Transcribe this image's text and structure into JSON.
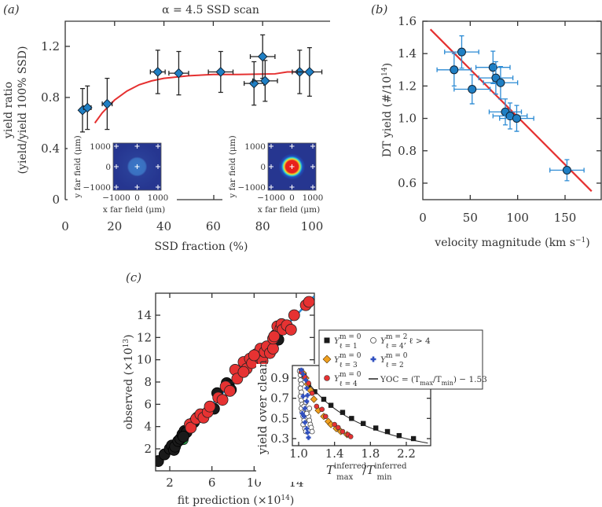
{
  "chart_data": [
    {
      "panel": "(a)",
      "type": "scatter",
      "title": "α = 4.5 SSD scan",
      "xlabel": "SSD fraction (%)",
      "ylabel": [
        "yield ratio",
        "(yield/yield 100% SSD)"
      ],
      "xlim": [
        0,
        107
      ],
      "ylim": [
        0,
        1.4
      ],
      "xticks": [
        0,
        20,
        40,
        60,
        80,
        100
      ],
      "yticks": [
        0,
        0.4,
        0.8,
        1.2
      ],
      "colors": {
        "marker": "#1f7fc4",
        "fit": "#e53030",
        "errorbar": "#222222"
      },
      "points": [
        {
          "x": 7,
          "y": 0.7,
          "xerr": 1,
          "yerr": 0.17
        },
        {
          "x": 9,
          "y": 0.72,
          "xerr": 1.5,
          "yerr": 0.17
        },
        {
          "x": 17,
          "y": 0.75,
          "xerr": 2,
          "yerr": 0.2
        },
        {
          "x": 37.5,
          "y": 1.0,
          "xerr": 3,
          "yerr": 0.17
        },
        {
          "x": 46,
          "y": 0.99,
          "xerr": 4,
          "yerr": 0.17
        },
        {
          "x": 63,
          "y": 1.0,
          "xerr": 5,
          "yerr": 0.16
        },
        {
          "x": 76.5,
          "y": 0.91,
          "xerr": 4,
          "yerr": 0.17
        },
        {
          "x": 80,
          "y": 1.12,
          "xerr": 5,
          "yerr": 0.17
        },
        {
          "x": 81,
          "y": 0.93,
          "xerr": 5,
          "yerr": 0.16
        },
        {
          "x": 95,
          "y": 1.0,
          "xerr": 3,
          "yerr": 0.17
        },
        {
          "x": 99,
          "y": 1.0,
          "xerr": 5,
          "yerr": 0.19
        }
      ],
      "fit": [
        [
          12,
          0.6
        ],
        [
          15,
          0.68
        ],
        [
          20,
          0.78
        ],
        [
          25,
          0.85
        ],
        [
          30,
          0.9
        ],
        [
          35,
          0.93
        ],
        [
          40,
          0.95
        ],
        [
          50,
          0.97
        ],
        [
          60,
          0.98
        ],
        [
          70,
          0.98
        ],
        [
          85,
          0.985
        ],
        [
          90,
          1.0
        ],
        [
          101,
          1.0
        ]
      ],
      "insets": [
        {
          "ylabel": "y far field (μm)",
          "xlabel": "x far field (μm)",
          "ticks": [
            "−1000",
            "0",
            "1000"
          ],
          "style": "faint"
        },
        {
          "ylabel": "y far field (μm)",
          "xlabel": "x far field (μm)",
          "ticks": [
            "−1000",
            "0",
            "1000"
          ],
          "style": "hot"
        }
      ]
    },
    {
      "panel": "(b)",
      "type": "scatter",
      "xlabel": "velocity magnitude (km s",
      "xlabel_sup": "−1",
      "xlabel_end": ")",
      "ylabel": "DT yield (#/10",
      "ylabel_sup": "14",
      "ylabel_end": ")",
      "xlim": [
        0,
        190
      ],
      "ylim": [
        0.5,
        1.6
      ],
      "xticks": [
        0,
        50,
        100,
        150
      ],
      "yticks": [
        0.6,
        0.8,
        1.0,
        1.2,
        1.4,
        1.6
      ],
      "colors": {
        "marker": "#1f7fc4",
        "errorbar": "#2a8ad4",
        "fit": "#e53030"
      },
      "points": [
        {
          "x": 33,
          "y": 1.3,
          "xerr": 18,
          "yerr": 0.1
        },
        {
          "x": 41,
          "y": 1.41,
          "xerr": 18,
          "yerr": 0.1
        },
        {
          "x": 52,
          "y": 1.18,
          "xerr": 19,
          "yerr": 0.09
        },
        {
          "x": 74,
          "y": 1.315,
          "xerr": 18,
          "yerr": 0.1
        },
        {
          "x": 77,
          "y": 1.25,
          "xerr": 18,
          "yerr": 0.1
        },
        {
          "x": 82,
          "y": 1.22,
          "xerr": 18,
          "yerr": 0.1
        },
        {
          "x": 87,
          "y": 1.04,
          "xerr": 17,
          "yerr": 0.08
        },
        {
          "x": 92,
          "y": 1.015,
          "xerr": 18,
          "yerr": 0.08
        },
        {
          "x": 99,
          "y": 1.0,
          "xerr": 18,
          "yerr": 0.08
        },
        {
          "x": 152,
          "y": 0.68,
          "xerr": 18,
          "yerr": 0.065
        }
      ],
      "fit": [
        [
          8,
          1.55
        ],
        [
          178,
          0.55
        ]
      ]
    },
    {
      "panel": "(c)",
      "type": "scatter",
      "xlabel": "fit prediction (×10",
      "xlabel_sup": "14",
      "xlabel_end": ")",
      "ylabel": "observed (×10",
      "ylabel_sup": "13",
      "ylabel_end": ")",
      "xlim": [
        0.65,
        15.7
      ],
      "ylim": [
        0,
        16
      ],
      "xticks": [
        2,
        6,
        10,
        14
      ],
      "yticks": [
        2,
        4,
        6,
        8,
        10,
        12,
        14
      ],
      "colors": {
        "black": "#1a1a1a",
        "red": "#e63232",
        "green": "#2a9a4a",
        "line": "#2a8ad4"
      },
      "black_points": [
        [
          0.9,
          0.9
        ],
        [
          1.5,
          1.5
        ],
        [
          2.0,
          2.0
        ],
        [
          2.2,
          2.3
        ],
        [
          2.4,
          1.9
        ],
        [
          2.5,
          2.2
        ],
        [
          2.8,
          2.7
        ],
        [
          3.0,
          2.9
        ],
        [
          3.2,
          3.3
        ],
        [
          3.4,
          3.6
        ],
        [
          3.6,
          3.5
        ],
        [
          3.3,
          3.1
        ],
        [
          4.0,
          4.2
        ],
        [
          4.3,
          4.4
        ],
        [
          4.6,
          4.8
        ],
        [
          6.2,
          5.6
        ],
        [
          7.4,
          7.9
        ],
        [
          7.6,
          7.7
        ],
        [
          7.8,
          7.3
        ],
        [
          12.0,
          12.2
        ],
        [
          12.3,
          11.8
        ],
        [
          12.6,
          13.0
        ],
        [
          6.5,
          7.0
        ]
      ],
      "red_points": [
        [
          3.9,
          4.2
        ],
        [
          4.0,
          3.9
        ],
        [
          4.5,
          4.7
        ],
        [
          4.9,
          5.1
        ],
        [
          5.2,
          4.8
        ],
        [
          5.6,
          5.3
        ],
        [
          5.8,
          5.8
        ],
        [
          6.6,
          6.6
        ],
        [
          7.0,
          6.4
        ],
        [
          7.3,
          7.6
        ],
        [
          7.7,
          7.2
        ],
        [
          8.2,
          9.1
        ],
        [
          8.4,
          8.3
        ],
        [
          9.0,
          9.8
        ],
        [
          9.3,
          9.2
        ],
        [
          9.0,
          8.9
        ],
        [
          9.6,
          10.1
        ],
        [
          9.8,
          9.7
        ],
        [
          10.2,
          10.5
        ],
        [
          10.5,
          10.2
        ],
        [
          10.8,
          9.9
        ],
        [
          10.6,
          11.0
        ],
        [
          11.0,
          10.7
        ],
        [
          11.2,
          11.2
        ],
        [
          11.5,
          10.6
        ],
        [
          11.8,
          11.0
        ],
        [
          11.8,
          11.9
        ],
        [
          12.2,
          13.0
        ],
        [
          12.5,
          12.8
        ],
        [
          12.6,
          13.2
        ],
        [
          12.7,
          12.7
        ],
        [
          13.1,
          13.1
        ],
        [
          13.5,
          12.7
        ],
        [
          13.8,
          14.0
        ],
        [
          14.9,
          14.9
        ],
        [
          15.2,
          15.2
        ],
        [
          11.9,
          12.1
        ],
        [
          10.0,
          10.4
        ]
      ],
      "green_points": [
        [
          3.3,
          2.8
        ],
        [
          2.7,
          2.5
        ]
      ],
      "line": [
        [
          0.8,
          0.8
        ],
        [
          15.7,
          15.7
        ]
      ],
      "inset": {
        "ylabel": "yield over clean",
        "xlabel_base1": "T",
        "xlabel_sup1": "inferred",
        "xlabel_sub1": "max",
        "xlabel_sep": "/",
        "xlabel_base2": "T",
        "xlabel_sup2": "inferred",
        "xlabel_sub2": "min",
        "xlim": [
          0.93,
          2.47
        ],
        "ylim": [
          0.23,
          1.025
        ],
        "xticks": [
          "1.0",
          "1.4",
          "1.8",
          "2.2"
        ],
        "yticks": [
          "0.3",
          "0.5",
          "0.7",
          "0.9"
        ],
        "series": {
          "l1": [
            [
              1.03,
              0.97
            ],
            [
              1.06,
              0.93
            ],
            [
              1.11,
              0.83
            ],
            [
              1.18,
              0.765
            ],
            [
              1.28,
              0.69
            ],
            [
              1.36,
              0.63
            ],
            [
              1.49,
              0.56
            ],
            [
              1.59,
              0.5
            ],
            [
              1.72,
              0.45
            ],
            [
              1.86,
              0.405
            ],
            [
              1.99,
              0.37
            ],
            [
              2.12,
              0.33
            ],
            [
              2.28,
              0.3
            ]
          ],
          "l3": [
            [
              1.05,
              0.95
            ],
            [
              1.08,
              0.9
            ],
            [
              1.1,
              0.84
            ],
            [
              1.13,
              0.78
            ],
            [
              1.17,
              0.69
            ],
            [
              1.22,
              0.58
            ],
            [
              1.28,
              0.52
            ],
            [
              1.33,
              0.47
            ],
            [
              1.36,
              0.44
            ],
            [
              1.42,
              0.4
            ],
            [
              1.47,
              0.37
            ],
            [
              1.54,
              0.34
            ]
          ],
          "l4": [
            [
              1.03,
              0.96
            ],
            [
              1.07,
              0.91
            ],
            [
              1.11,
              0.85
            ],
            [
              1.15,
              0.75
            ],
            [
              1.2,
              0.62
            ],
            [
              1.26,
              0.59
            ],
            [
              1.3,
              0.52
            ],
            [
              1.4,
              0.44
            ],
            [
              1.44,
              0.41
            ],
            [
              1.49,
              0.37
            ],
            [
              1.55,
              0.34
            ],
            [
              1.58,
              0.32
            ]
          ],
          "l2": [
            [
              1.03,
              0.98
            ],
            [
              1.05,
              0.94
            ],
            [
              1.08,
              0.88
            ],
            [
              1.09,
              0.8
            ],
            [
              1.1,
              0.73
            ],
            [
              1.09,
              0.67
            ],
            [
              1.07,
              0.6
            ],
            [
              1.06,
              0.52
            ],
            [
              1.07,
              0.46
            ],
            [
              1.09,
              0.4
            ],
            [
              1.1,
              0.36
            ],
            [
              1.11,
              0.31
            ],
            [
              1.05,
              0.72
            ],
            [
              1.04,
              0.55
            ]
          ],
          "l4m2": [
            [
              1.01,
              0.97
            ],
            [
              1.02,
              0.93
            ],
            [
              1.02,
              0.88
            ],
            [
              1.03,
              0.84
            ],
            [
              1.02,
              0.8
            ],
            [
              1.03,
              0.76
            ],
            [
              1.02,
              0.72
            ],
            [
              1.03,
              0.68
            ],
            [
              1.04,
              0.64
            ],
            [
              1.03,
              0.6
            ],
            [
              1.04,
              0.56
            ],
            [
              1.05,
              0.52
            ],
            [
              1.06,
              0.48
            ],
            [
              1.05,
              0.44
            ],
            [
              1.07,
              0.4
            ],
            [
              1.08,
              0.37
            ],
            [
              1.06,
              0.62
            ],
            [
              1.08,
              0.66
            ],
            [
              1.1,
              0.58
            ],
            [
              1.11,
              0.52
            ],
            [
              1.12,
              0.48
            ],
            [
              1.13,
              0.44
            ],
            [
              1.14,
              0.41
            ],
            [
              1.15,
              0.37
            ],
            [
              1.09,
              0.55
            ],
            [
              1.12,
              0.6
            ],
            [
              1.07,
              0.7
            ]
          ]
        },
        "yoc_exponent": -1.53
      },
      "legend": [
        {
          "key": "l1",
          "base": "Y",
          "sup": "m = 0",
          "sub": "ℓ = 1",
          "extra": "",
          "color": "#1a1a1a",
          "marker": "square"
        },
        {
          "key": "l4m2",
          "base": "Y",
          "sup": "m = 2",
          "sub": "ℓ = 4",
          "extra": ", ℓ > 4",
          "color": "#1a1a1a",
          "marker": "open-circle"
        },
        {
          "key": "l3",
          "base": "Y",
          "sup": "m = 0",
          "sub": "ℓ = 3",
          "extra": "",
          "color": "#f0a020",
          "marker": "diamond"
        },
        {
          "key": "l2",
          "base": "Y",
          "sup": "m = 0",
          "sub": "ℓ = 2",
          "extra": "",
          "color": "#3050c0",
          "marker": "cross"
        },
        {
          "key": "l4",
          "base": "Y",
          "sup": "m = 0",
          "sub": "ℓ = 4",
          "extra": "",
          "color": "#e63232",
          "marker": "circle"
        },
        {
          "key": "yoc",
          "label": "YOC = (T",
          "sub1": "max",
          "mid": "/T",
          "sub2": "min",
          "end": ") − 1.53",
          "color": "#1a1a1a",
          "marker": "line"
        }
      ]
    }
  ]
}
